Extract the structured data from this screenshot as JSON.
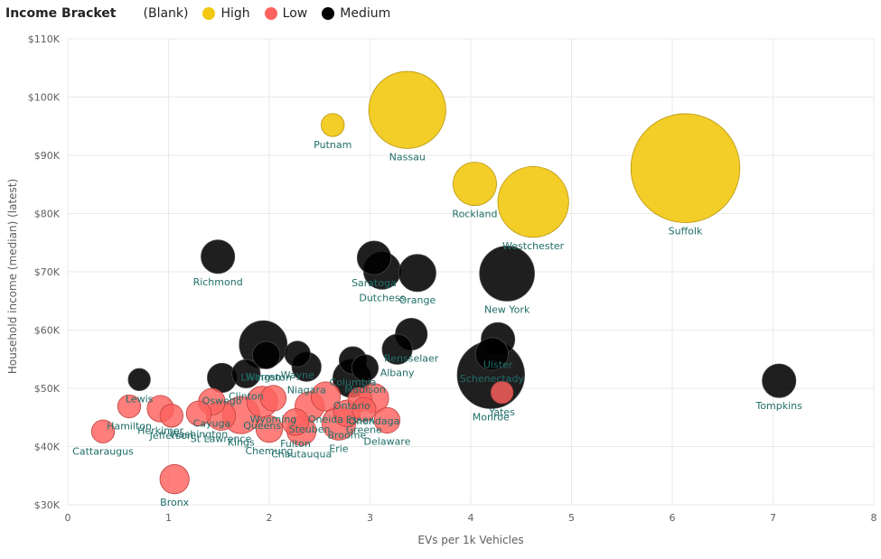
{
  "chart_data": {
    "type": "scatter",
    "xlabel": "EVs per 1k Vehicles",
    "ylabel": "Household income (median) (latest)",
    "xlim": [
      0,
      8
    ],
    "ylim": [
      30000,
      110000
    ],
    "x_ticks": [
      "0",
      "1",
      "2",
      "3",
      "4",
      "5",
      "6",
      "7",
      "8"
    ],
    "y_ticks": [
      "$30K",
      "$40K",
      "$50K",
      "$60K",
      "$70K",
      "$80K",
      "$90K",
      "$100K",
      "$110K"
    ],
    "legend": {
      "title": "Income Bracket",
      "position": "top-left",
      "entries": [
        {
          "label": "(Blank)",
          "color": ""
        },
        {
          "label": "High",
          "color": "#F2C811"
        },
        {
          "label": "Low",
          "color": "#FD625E"
        },
        {
          "label": "Medium",
          "color": "#000000"
        }
      ]
    },
    "grid": true,
    "colors": {
      "High": "#F2C811",
      "Low": "#FD625E",
      "Medium": "#000000",
      "label": "#1F6E68"
    },
    "series": [
      {
        "name": "High",
        "points": [
          {
            "label": "Putnam",
            "x": 2.63,
            "y": 95200,
            "size": 2.6
          },
          {
            "label": "Nassau",
            "x": 3.37,
            "y": 97800,
            "size": 8.7
          },
          {
            "label": "Rockland",
            "x": 4.04,
            "y": 85100,
            "size": 4.9
          },
          {
            "label": "Westchester",
            "x": 4.62,
            "y": 82000,
            "size": 8.0
          },
          {
            "label": "Suffolk",
            "x": 6.13,
            "y": 87800,
            "size": 12.3
          }
        ]
      },
      {
        "name": "Low",
        "points": [
          {
            "label": "Cattaraugus",
            "x": 0.35,
            "y": 42600,
            "size": 2.6
          },
          {
            "label": "Hamilton",
            "x": 0.61,
            "y": 46900,
            "size": 2.6
          },
          {
            "label": "Herkimer",
            "x": 0.92,
            "y": 46500,
            "size": 3.0
          },
          {
            "label": "Jefferson",
            "x": 1.03,
            "y": 45300,
            "size": 2.6
          },
          {
            "label": "Bronx",
            "x": 1.06,
            "y": 34400,
            "size": 3.3
          },
          {
            "label": "Washington",
            "x": 1.3,
            "y": 45700,
            "size": 2.8
          },
          {
            "label": "Cayuga",
            "x": 1.43,
            "y": 47700,
            "size": 3.0
          },
          {
            "label": "St Lawrence",
            "x": 1.52,
            "y": 45300,
            "size": 3.3
          },
          {
            "label": "Kings",
            "x": 1.72,
            "y": 45400,
            "size": 4.2
          },
          {
            "label": "Queens",
            "x": 1.93,
            "y": 47700,
            "size": 3.5
          },
          {
            "label": "Wyoming",
            "x": 2.04,
            "y": 48300,
            "size": 2.9
          },
          {
            "label": "Chemung",
            "x": 2.0,
            "y": 43000,
            "size": 3.0
          },
          {
            "label": "Chautauqua",
            "x": 2.32,
            "y": 42700,
            "size": 3.3
          },
          {
            "label": "Fulton",
            "x": 2.26,
            "y": 44200,
            "size": 3.0
          },
          {
            "label": "Steuben",
            "x": 2.4,
            "y": 46900,
            "size": 3.3
          },
          {
            "label": "Oneida",
            "x": 2.56,
            "y": 48600,
            "size": 3.3
          },
          {
            "label": "Erie",
            "x": 2.69,
            "y": 44000,
            "size": 3.8
          },
          {
            "label": "Essex",
            "x": 2.9,
            "y": 48100,
            "size": 2.7
          },
          {
            "label": "Greene",
            "x": 2.94,
            "y": 46400,
            "size": 2.7
          },
          {
            "label": "Broome",
            "x": 2.77,
            "y": 45700,
            "size": 3.0
          },
          {
            "label": "Onondaga",
            "x": 3.04,
            "y": 48300,
            "size": 3.3
          },
          {
            "label": "Delaware",
            "x": 3.17,
            "y": 44500,
            "size": 2.9
          },
          {
            "label": "Yates",
            "x": 4.31,
            "y": 49300,
            "size": 2.5
          }
        ]
      },
      {
        "name": "Medium",
        "points": [
          {
            "label": "Lewis",
            "x": 0.71,
            "y": 51500,
            "size": 2.5
          },
          {
            "label": "Richmond",
            "x": 1.49,
            "y": 72600,
            "size": 3.8
          },
          {
            "label": "Oswego",
            "x": 1.53,
            "y": 51800,
            "size": 3.3
          },
          {
            "label": "Clinton",
            "x": 1.77,
            "y": 52500,
            "size": 3.2
          },
          {
            "label": "Livingston",
            "x": 1.97,
            "y": 55700,
            "size": 3.1
          },
          {
            "label": "Warren",
            "x": 1.94,
            "y": 57500,
            "size": 5.4
          },
          {
            "label": "Wayne",
            "x": 2.28,
            "y": 55900,
            "size": 2.9
          },
          {
            "label": "Niagara",
            "x": 2.37,
            "y": 53700,
            "size": 3.3
          },
          {
            "label": "Columbia",
            "x": 2.83,
            "y": 54800,
            "size": 3.1
          },
          {
            "label": "Madison",
            "x": 2.95,
            "y": 53500,
            "size": 3.0
          },
          {
            "label": "Ontario",
            "x": 2.82,
            "y": 51700,
            "size": 4.3
          },
          {
            "label": "Saratoga",
            "x": 3.04,
            "y": 72400,
            "size": 3.8
          },
          {
            "label": "Dutchess",
            "x": 3.12,
            "y": 70200,
            "size": 4.2
          },
          {
            "label": "Orange",
            "x": 3.47,
            "y": 69800,
            "size": 4.2
          },
          {
            "label": "Rensselaer",
            "x": 3.41,
            "y": 59300,
            "size": 3.6
          },
          {
            "label": "Albany",
            "x": 3.27,
            "y": 56700,
            "size": 3.4
          },
          {
            "label": "New York",
            "x": 4.36,
            "y": 69700,
            "size": 6.2
          },
          {
            "label": "Ulster",
            "x": 4.27,
            "y": 58400,
            "size": 3.8
          },
          {
            "label": "Schenectady",
            "x": 4.21,
            "y": 55900,
            "size": 3.7
          },
          {
            "label": "Monroe",
            "x": 4.2,
            "y": 52300,
            "size": 7.6
          },
          {
            "label": "Tompkins",
            "x": 7.06,
            "y": 51300,
            "size": 3.8
          }
        ]
      }
    ]
  }
}
